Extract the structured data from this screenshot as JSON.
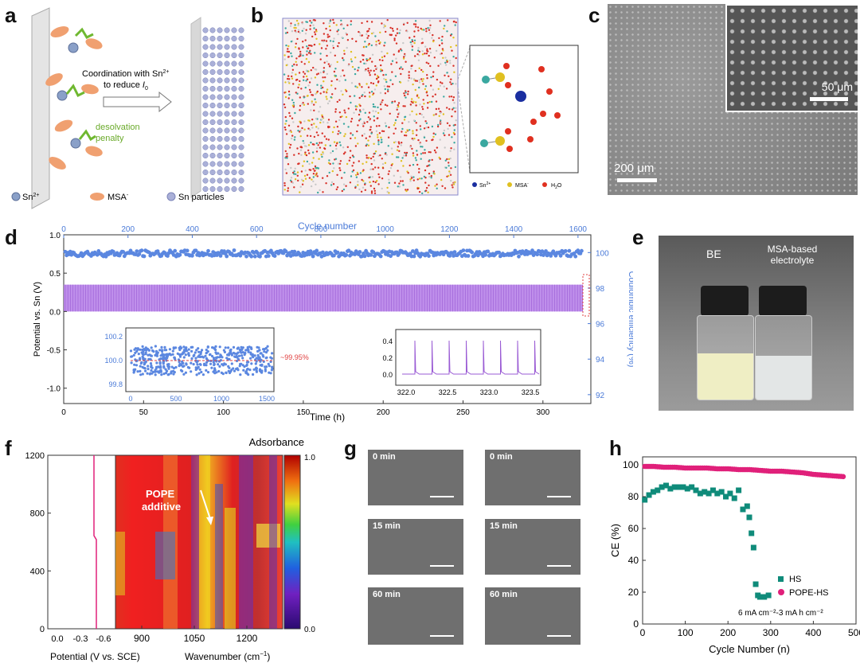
{
  "panel_labels": {
    "a": "a",
    "b": "b",
    "c": "c",
    "d": "d",
    "e": "e",
    "f": "f",
    "g": "g",
    "h": "h"
  },
  "panel_a": {
    "arrow_text_1": "Coordination with Sn",
    "arrow_text_1_sup": "2+",
    "arrow_text_2": "to reduce ",
    "arrow_text_2_i": "I",
    "arrow_text_2_sub": "0",
    "penalty_1": "desolvation",
    "penalty_2": "penalty",
    "legend_sn": "Sn",
    "legend_sn_sup": "2+",
    "legend_msa": "MSA",
    "legend_msa_sup": "-",
    "legend_particles": "Sn particles"
  },
  "panel_b": {
    "legend_sn": "Sn",
    "legend_sn_sup": "2+",
    "legend_msa": "MSA",
    "legend_msa_sup": "-",
    "legend_h2o": "H",
    "legend_h2o_sub": "2",
    "legend_h2o_tail": "O"
  },
  "panel_c": {
    "scale_main": "200 μm",
    "scale_inset": "50 μm"
  },
  "panel_d": {
    "top_axis_title": "Cycle number",
    "top_ticks": [
      "0",
      "200",
      "400",
      "600",
      "800",
      "1000",
      "1200",
      "1400",
      "1600"
    ],
    "bottom_ticks": [
      "0",
      "50",
      "100",
      "150",
      "200",
      "250",
      "300"
    ],
    "xlabel": "Time (h)",
    "left_ticks": [
      "1.0",
      "0.5",
      "0.0",
      "-0.5",
      "-1.0"
    ],
    "ylabel_left": "Potential vs. Sn (V)",
    "right_ticks": [
      "100",
      "98",
      "96",
      "94",
      "92"
    ],
    "ylabel_right": "Coulombic efficiency (%)",
    "inset1_y_ticks": [
      "100.2",
      "100.0",
      "99.8"
    ],
    "inset1_x_ticks": [
      "0",
      "500",
      "1000",
      "1500"
    ],
    "inset1_note": "~99.95%",
    "inset2_y_ticks": [
      "0.4",
      "0.2",
      "0.0"
    ],
    "inset2_x_ticks": [
      "322.0",
      "322.5",
      "323.0",
      "323.5"
    ]
  },
  "panel_e": {
    "label_be": "BE",
    "label_msa_1": "MSA-based",
    "label_msa_2": "electrolyte"
  },
  "panel_f": {
    "y_ticks": [
      "1200",
      "800",
      "400",
      "0"
    ],
    "potential_ticks": [
      "0.0",
      "-0.3",
      "-0.6"
    ],
    "potential_label": "Potential (V vs. SCE)",
    "wn_ticks": [
      "900",
      "1050",
      "1200"
    ],
    "wn_label": "Wavenumber (cm",
    "wn_label_sup": "−1",
    "wn_label_tail": ")",
    "annotation_1": "POPE",
    "annotation_2": "additive",
    "colorbar_title": "Adsorbance",
    "colorbar_max": "1.0",
    "colorbar_min": "0.0"
  },
  "panel_g": {
    "times": [
      "0 min",
      "0 min",
      "15 min",
      "15 min",
      "60 min",
      "60 min"
    ]
  },
  "panel_h": {
    "x_ticks": [
      "0",
      "100",
      "200",
      "300",
      "400",
      "500"
    ],
    "y_ticks": [
      "100",
      "80",
      "60",
      "40",
      "20",
      "0"
    ],
    "xlabel": "Cycle Number (n)",
    "ylabel": "CE (%)",
    "legend_hs": "HS",
    "legend_pope": "POPE-HS",
    "condition": "6 mA cm⁻²-3 mA h cm⁻²"
  },
  "chart_data": [
    {
      "type": "line",
      "title": "",
      "xlabel": "Time (h)",
      "ylabel": "Potential vs. Sn (V)",
      "x_top_label": "Cycle number",
      "xlim": [
        0,
        330
      ],
      "ylim": [
        -1.2,
        1.0
      ],
      "ylim_right": [
        91.5,
        101
      ],
      "x_top_lim": [
        0,
        1640
      ],
      "series": [
        {
          "name": "Potential",
          "color": "#a24be0",
          "band_min": 0.0,
          "band_max": 0.35,
          "time_range": [
            0,
            325
          ]
        },
        {
          "name": "Coulombic efficiency",
          "color": "#5b87e0",
          "axis": "right",
          "time_range": [
            0,
            325
          ],
          "values": [
            99.8,
            99.9,
            99.95,
            99.95,
            99.95,
            99.9,
            99.95
          ]
        }
      ]
    },
    {
      "type": "scatter",
      "title": "",
      "xlabel": "Cycle Number (n)",
      "ylabel": "CE (%)",
      "xlim": [
        0,
        500
      ],
      "ylim": [
        0,
        105
      ],
      "series": [
        {
          "name": "HS",
          "color": "#0f8b7a",
          "x": [
            5,
            15,
            25,
            35,
            45,
            55,
            65,
            75,
            85,
            95,
            105,
            115,
            125,
            135,
            145,
            155,
            165,
            175,
            185,
            195,
            205,
            215,
            225,
            235,
            245,
            250,
            255,
            260,
            265,
            270,
            275,
            285,
            295
          ],
          "values": [
            78,
            81,
            83,
            84,
            86,
            87,
            85,
            86,
            86,
            86,
            85,
            86,
            84,
            82,
            83,
            82,
            84,
            82,
            83,
            80,
            82,
            79,
            84,
            72,
            74,
            67,
            57,
            48,
            25,
            18,
            17,
            17,
            18
          ]
        },
        {
          "name": "POPE-HS",
          "color": "#e0207a",
          "x": [
            5,
            25,
            50,
            75,
            100,
            125,
            150,
            175,
            200,
            225,
            250,
            275,
            300,
            325,
            350,
            375,
            400,
            425,
            450,
            475
          ],
          "values": [
            99,
            99,
            98.5,
            98.5,
            98,
            98,
            98,
            97.5,
            97.5,
            97,
            97,
            96.5,
            96,
            96,
            95.5,
            95,
            94,
            93.5,
            93,
            92.5
          ]
        }
      ]
    }
  ]
}
